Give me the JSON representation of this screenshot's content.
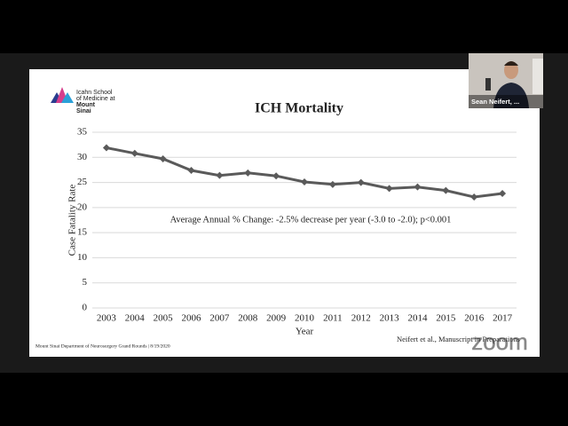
{
  "logo": {
    "lines": [
      "Icahn School",
      "of Medicine at",
      "Mount",
      "Sinai"
    ]
  },
  "footer": "Mount Sinai Department of Neurosurgery Grand Rounds | 8/19/2020",
  "citation": "Neifert et al., Manuscript in Preparations",
  "participant": "Sean Neifert, ...",
  "watermark": "zoom",
  "chart_data": {
    "type": "line",
    "title": "ICH Mortality",
    "x_label": "Year",
    "y_label": "Case Fatality Rate",
    "annotation": "Average Annual % Change: -2.5% decrease per year (-3.0 to -2.0); p<0.001",
    "categories": [
      "2003",
      "2004",
      "2005",
      "2006",
      "2007",
      "2008",
      "2009",
      "2010",
      "2011",
      "2012",
      "2013",
      "2014",
      "2015",
      "2016",
      "2017"
    ],
    "values": [
      31.9,
      30.8,
      29.7,
      27.4,
      26.4,
      26.9,
      26.3,
      25.1,
      24.6,
      25.0,
      23.8,
      24.1,
      23.4,
      22.1,
      22.8
    ],
    "color": "#5a5a5a",
    "ylim": [
      0,
      35
    ],
    "yticks": [
      0,
      5,
      10,
      15,
      20,
      25,
      30,
      35
    ],
    "grid": true
  }
}
